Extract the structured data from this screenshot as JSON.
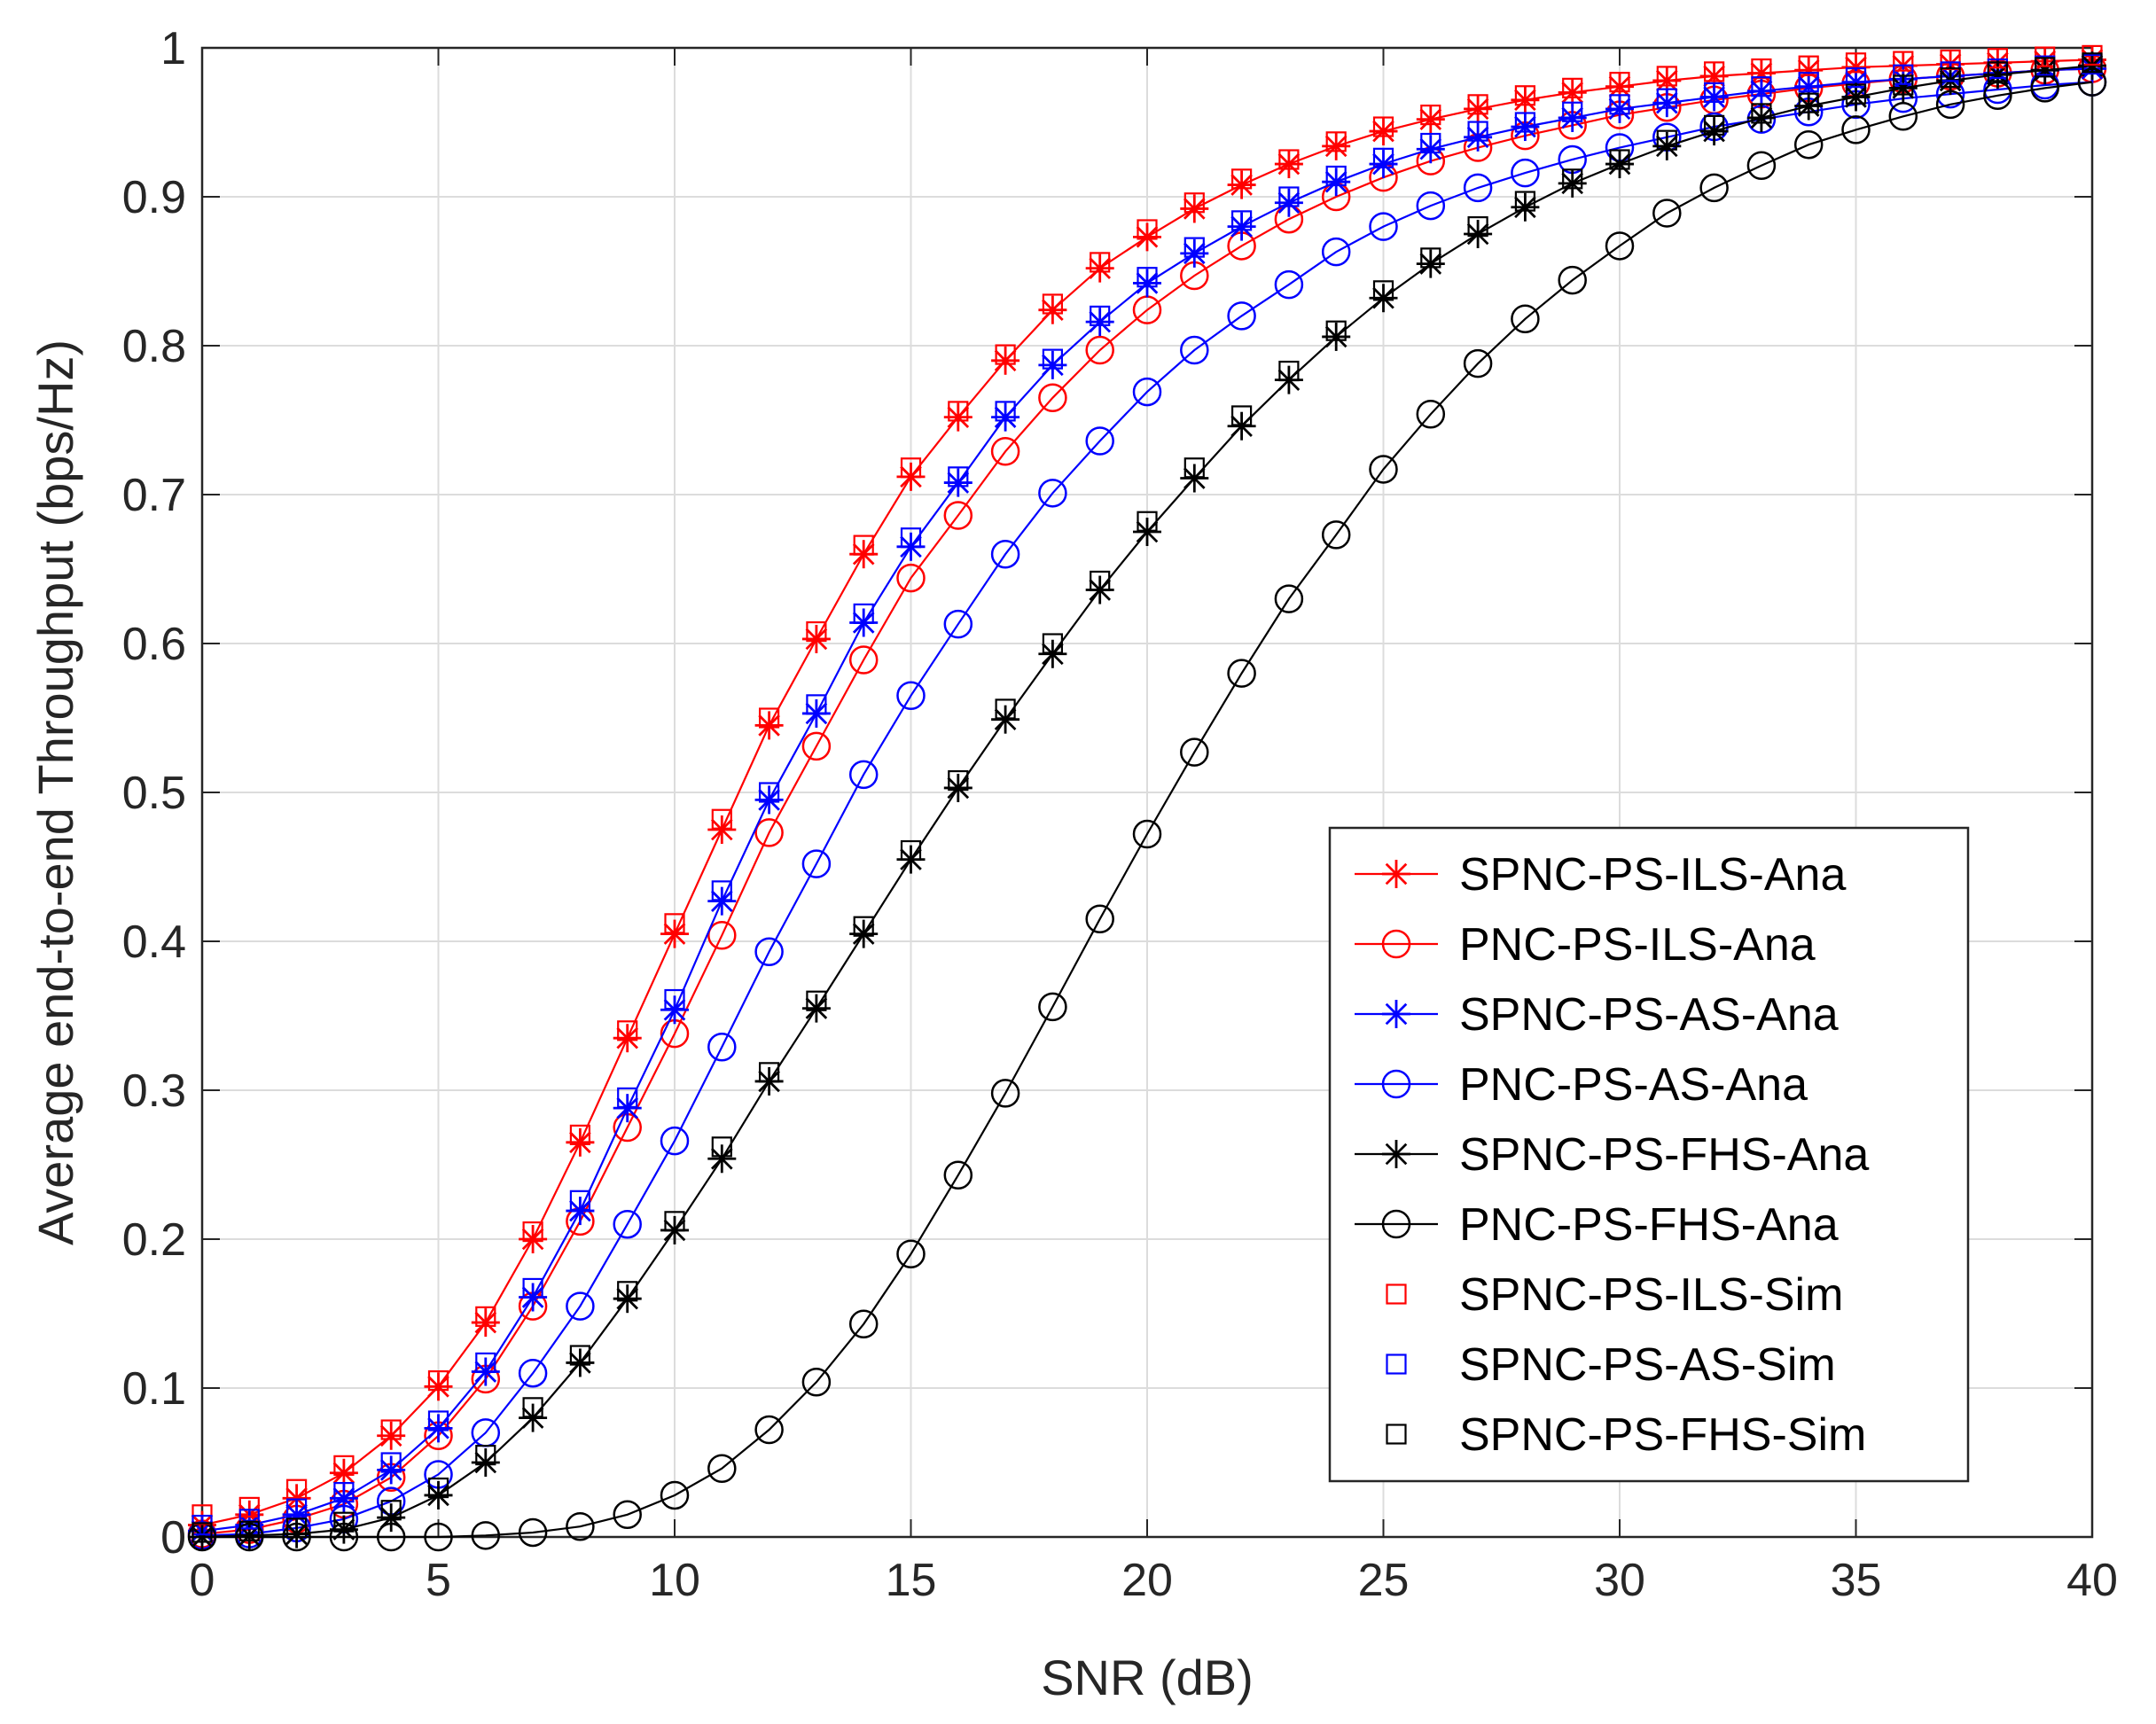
{
  "chart_data": {
    "type": "line",
    "title": "",
    "xlabel": "SNR (dB)",
    "ylabel": "Average end-to-end Throughput (bps/Hz)",
    "xlim": [
      0,
      40
    ],
    "ylim": [
      0,
      1
    ],
    "grid": true,
    "legend_position": "bottom-right",
    "x_ticks": [
      "0",
      "5",
      "10",
      "15",
      "20",
      "25",
      "30",
      "35",
      "40"
    ],
    "y_ticks": [
      "0",
      "0.1",
      "0.2",
      "0.3",
      "0.4",
      "0.5",
      "0.6",
      "0.7",
      "0.8",
      "0.9",
      "1"
    ],
    "x": [
      0,
      1,
      2,
      3,
      4,
      5,
      6,
      7,
      8,
      9,
      10,
      11,
      12,
      13,
      14,
      15,
      16,
      17,
      18,
      19,
      20,
      21,
      22,
      23,
      24,
      25,
      26,
      27,
      28,
      29,
      30,
      31,
      32,
      33,
      34,
      35,
      36,
      37,
      38,
      39,
      40
    ],
    "series": [
      {
        "name": "SPNC-PS-ILS-Ana",
        "color": "#ff0000",
        "marker": "star",
        "line": true,
        "values": [
          0.008,
          0.015,
          0.026,
          0.043,
          0.068,
          0.101,
          0.144,
          0.2,
          0.265,
          0.335,
          0.405,
          0.475,
          0.545,
          0.603,
          0.66,
          0.712,
          0.752,
          0.79,
          0.824,
          0.852,
          0.873,
          0.892,
          0.908,
          0.922,
          0.934,
          0.944,
          0.952,
          0.959,
          0.965,
          0.97,
          0.974,
          0.978,
          0.981,
          0.983,
          0.985,
          0.987,
          0.988,
          0.989,
          0.99,
          0.991,
          0.992
        ]
      },
      {
        "name": "PNC-PS-ILS-Ana",
        "color": "#ff0000",
        "marker": "circle",
        "line": true,
        "values": [
          0.002,
          0.005,
          0.012,
          0.022,
          0.04,
          0.068,
          0.106,
          0.155,
          0.212,
          0.275,
          0.338,
          0.404,
          0.473,
          0.531,
          0.589,
          0.644,
          0.686,
          0.729,
          0.765,
          0.797,
          0.824,
          0.847,
          0.867,
          0.885,
          0.9,
          0.913,
          0.924,
          0.933,
          0.941,
          0.948,
          0.955,
          0.96,
          0.965,
          0.969,
          0.973,
          0.976,
          0.979,
          0.981,
          0.983,
          0.985,
          0.986
        ]
      },
      {
        "name": "SPNC-PS-AS-Ana",
        "color": "#0000ff",
        "marker": "star",
        "line": true,
        "values": [
          0.004,
          0.008,
          0.015,
          0.026,
          0.045,
          0.073,
          0.111,
          0.161,
          0.219,
          0.288,
          0.354,
          0.427,
          0.495,
          0.553,
          0.614,
          0.665,
          0.708,
          0.752,
          0.787,
          0.816,
          0.842,
          0.862,
          0.88,
          0.896,
          0.91,
          0.922,
          0.932,
          0.94,
          0.947,
          0.953,
          0.959,
          0.963,
          0.967,
          0.971,
          0.974,
          0.977,
          0.979,
          0.981,
          0.983,
          0.985,
          0.986
        ]
      },
      {
        "name": "PNC-PS-AS-Ana",
        "color": "#0000ff",
        "marker": "circle",
        "line": true,
        "values": [
          0.001,
          0.002,
          0.006,
          0.012,
          0.024,
          0.042,
          0.07,
          0.11,
          0.155,
          0.21,
          0.266,
          0.329,
          0.393,
          0.452,
          0.512,
          0.565,
          0.613,
          0.66,
          0.701,
          0.736,
          0.769,
          0.797,
          0.82,
          0.841,
          0.863,
          0.88,
          0.894,
          0.906,
          0.916,
          0.925,
          0.933,
          0.94,
          0.947,
          0.952,
          0.957,
          0.962,
          0.966,
          0.969,
          0.972,
          0.975,
          0.977
        ]
      },
      {
        "name": "SPNC-PS-FHS-Ana",
        "color": "#000000",
        "marker": "star",
        "line": true,
        "values": [
          0.0,
          0.001,
          0.002,
          0.005,
          0.013,
          0.028,
          0.05,
          0.08,
          0.117,
          0.16,
          0.206,
          0.254,
          0.306,
          0.355,
          0.405,
          0.455,
          0.503,
          0.549,
          0.593,
          0.636,
          0.675,
          0.711,
          0.746,
          0.777,
          0.806,
          0.832,
          0.855,
          0.875,
          0.893,
          0.909,
          0.922,
          0.934,
          0.944,
          0.953,
          0.961,
          0.967,
          0.973,
          0.978,
          0.982,
          0.985,
          0.988
        ]
      },
      {
        "name": "PNC-PS-FHS-Ana",
        "color": "#000000",
        "marker": "circle",
        "line": true,
        "values": [
          0.0,
          0.0,
          0.0,
          0.0,
          0.0,
          0.0,
          0.001,
          0.003,
          0.007,
          0.015,
          0.028,
          0.046,
          0.072,
          0.104,
          0.143,
          0.19,
          0.243,
          0.298,
          0.356,
          0.415,
          0.472,
          0.527,
          0.58,
          0.63,
          0.673,
          0.717,
          0.754,
          0.788,
          0.818,
          0.844,
          0.867,
          0.889,
          0.906,
          0.921,
          0.935,
          0.945,
          0.954,
          0.962,
          0.968,
          0.973,
          0.977
        ]
      },
      {
        "name": "SPNC-PS-ILS-Sim",
        "color": "#ff0000",
        "marker": "square",
        "line": false,
        "values": [
          0.015,
          0.02,
          0.032,
          0.048,
          0.072,
          0.105,
          0.148,
          0.205,
          0.27,
          0.34,
          0.412,
          0.482,
          0.55,
          0.608,
          0.666,
          0.718,
          0.756,
          0.794,
          0.828,
          0.856,
          0.878,
          0.896,
          0.912,
          0.925,
          0.937,
          0.947,
          0.955,
          0.962,
          0.968,
          0.973,
          0.977,
          0.981,
          0.984,
          0.986,
          0.988,
          0.99,
          0.991,
          0.992,
          0.993,
          0.994,
          0.995
        ]
      },
      {
        "name": "SPNC-PS-AS-Sim",
        "color": "#0000ff",
        "marker": "square",
        "line": false,
        "values": [
          0.008,
          0.012,
          0.019,
          0.03,
          0.05,
          0.078,
          0.117,
          0.167,
          0.226,
          0.295,
          0.361,
          0.434,
          0.5,
          0.559,
          0.62,
          0.671,
          0.712,
          0.756,
          0.791,
          0.82,
          0.846,
          0.866,
          0.884,
          0.9,
          0.914,
          0.926,
          0.936,
          0.944,
          0.95,
          0.957,
          0.962,
          0.966,
          0.97,
          0.974,
          0.977,
          0.98,
          0.982,
          0.984,
          0.986,
          0.988,
          0.989
        ]
      },
      {
        "name": "SPNC-PS-FHS-Sim",
        "color": "#000000",
        "marker": "square",
        "line": false,
        "values": [
          0.003,
          0.004,
          0.006,
          0.01,
          0.018,
          0.033,
          0.055,
          0.087,
          0.122,
          0.165,
          0.212,
          0.262,
          0.312,
          0.36,
          0.41,
          0.461,
          0.508,
          0.556,
          0.6,
          0.642,
          0.682,
          0.718,
          0.753,
          0.783,
          0.81,
          0.837,
          0.859,
          0.88,
          0.897,
          0.912,
          0.925,
          0.938,
          0.948,
          0.956,
          0.963,
          0.969,
          0.975,
          0.98,
          0.984,
          0.987,
          0.99
        ]
      }
    ]
  }
}
